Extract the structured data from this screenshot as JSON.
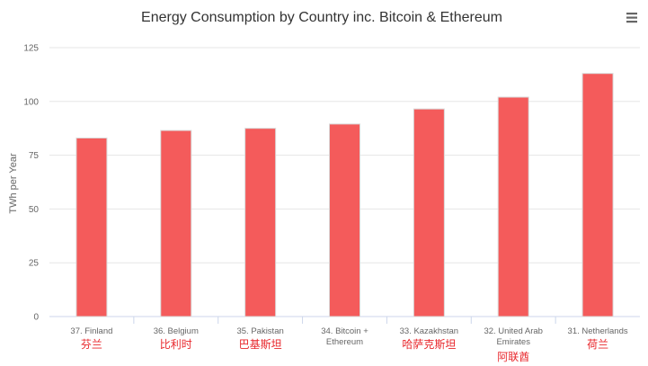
{
  "chart_data": {
    "type": "bar",
    "title": "Energy Consumption by Country inc. Bitcoin & Ethereum",
    "ylabel": "TWh per Year",
    "xlabel": "",
    "ylim": [
      0,
      125
    ],
    "yticks": [
      0,
      25,
      50,
      75,
      100,
      125
    ],
    "grid": true,
    "legend": "none",
    "bar_color": "#f45b5b",
    "categories": [
      [
        "37. Finland"
      ],
      [
        "36. Belgium"
      ],
      [
        "35. Pakistan"
      ],
      [
        "34. Bitcoin +",
        "Ethereum"
      ],
      [
        "33. Kazakhstan"
      ],
      [
        "32. United Arab",
        "Emirates"
      ],
      [
        "31. Netherlands"
      ]
    ],
    "values": [
      83,
      86.5,
      87.5,
      89.5,
      96.5,
      102,
      113
    ]
  },
  "annotations": {
    "chinese_labels": [
      "芬兰",
      "比利时",
      "巴基斯坦",
      "",
      "哈萨克斯坦",
      "阿联酋",
      "荷兰"
    ],
    "color": "#e8262b"
  },
  "menu": {
    "icon": "hamburger-menu-icon"
  }
}
